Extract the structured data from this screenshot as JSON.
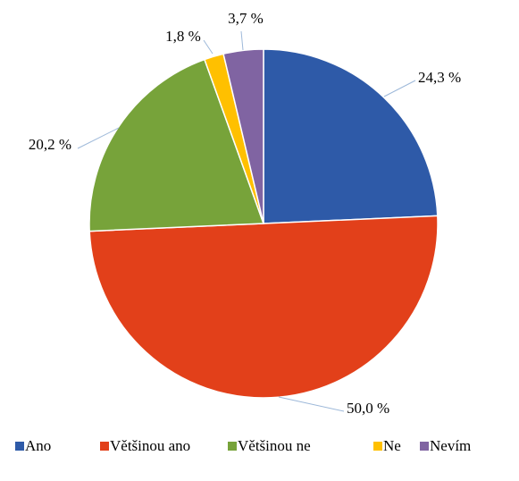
{
  "chart_data": {
    "type": "pie",
    "categories": [
      "Ano",
      "Většinou ano",
      "Většinou ne",
      "Ne",
      "Nevím"
    ],
    "values": [
      24.3,
      50.0,
      20.2,
      1.8,
      3.7
    ],
    "value_labels": [
      "24,3 %",
      "50,0 %",
      "20,2 %",
      "1,8 %",
      "3,7 %"
    ],
    "colors": [
      "#2e5aa8",
      "#e2401a",
      "#77a33a",
      "#ffc000",
      "#8064a2"
    ],
    "legend": "bottom"
  }
}
